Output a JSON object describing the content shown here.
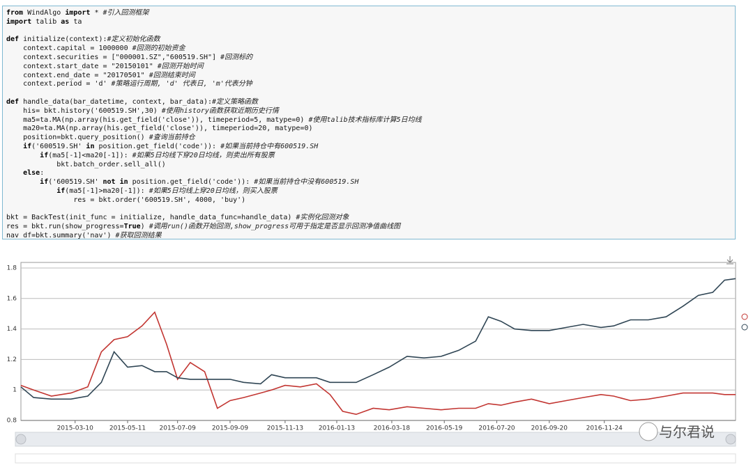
{
  "code": [
    [
      "from WindAlgo import * #引入回测框架",
      "import talib as ta"
    ],
    [
      "def initialize(context):#定义初始化函数",
      "    context.capital = 1000000 #回测的初始资金",
      "    context.securities = [\"000001.SZ\",\"600519.SH\"] #回测标的",
      "    context.start_date = \"20150101\" #回测开始时间",
      "    context.end_date = \"20170501\" #回测结束时间",
      "    context.period = 'd' #策略运行周期, 'd' 代表日, 'm'代表分钟"
    ],
    [
      "def handle_data(bar_datetime, context, bar_data):#定义策略函数",
      "    his= bkt.history('600519.SH',30) #使用history函数获取近期历史行情",
      "    ma5=ta.MA(np.array(his.get_field('close')), timeperiod=5, matype=0) #使用talib技术指标库计算5日均线",
      "    ma20=ta.MA(np.array(his.get_field('close')), timeperiod=20, matype=0)",
      "    position=bkt.query_position() #查询当前持仓",
      "    if('600519.SH' in position.get_field('code')): #如果当前持仓中有600519.SH",
      "        if(ma5[-1]<ma20[-1]): #如果5日均线下穿20日均线，则卖出所有股票",
      "            bkt.batch_order.sell_all()",
      "    else:",
      "        if('600519.SH' not in position.get_field('code')): #如果当前持仓中没有600519.SH",
      "            if(ma5[-1]>ma20[-1]): #如果5日均线上穿20日均线，则买入股票",
      "                res = bkt.order('600519.SH', 4000, 'buy')"
    ],
    [
      "bkt = BackTest(init_func = initialize, handle_data_func=handle_data) #实例化回测对象",
      "res = bkt.run(show_progress=True) #调用run()函数开始回测,show_progress可用于指定是否显示回测净值曲线图",
      "nav_df=bkt.summary('nav') #获取回测结果"
    ]
  ],
  "watermark": "与尔君说",
  "chart_data": {
    "type": "line",
    "x": [
      "2015-01-05",
      "2015-01-20",
      "2015-02-10",
      "2015-03-05",
      "2015-03-25",
      "2015-04-10",
      "2015-04-25",
      "2015-05-11",
      "2015-05-28",
      "2015-06-12",
      "2015-06-26",
      "2015-07-09",
      "2015-07-24",
      "2015-08-10",
      "2015-08-25",
      "2015-09-09",
      "2015-09-25",
      "2015-10-15",
      "2015-10-28",
      "2015-11-13",
      "2015-12-01",
      "2015-12-20",
      "2016-01-05",
      "2016-01-20",
      "2016-02-05",
      "2016-02-25",
      "2016-03-15",
      "2016-04-05",
      "2016-04-25",
      "2016-05-15",
      "2016-06-05",
      "2016-06-25",
      "2016-07-10",
      "2016-07-25",
      "2016-08-10",
      "2016-08-30",
      "2016-09-20",
      "2016-10-10",
      "2016-10-30",
      "2016-11-20",
      "2016-12-05",
      "2016-12-25",
      "2017-01-15",
      "2017-02-05",
      "2017-02-25",
      "2017-03-15",
      "2017-04-01",
      "2017-04-15",
      "2017-04-28"
    ],
    "series": [
      {
        "color": "#c23531",
        "values": [
          1.03,
          1.0,
          0.96,
          0.98,
          1.02,
          1.25,
          1.33,
          1.35,
          1.42,
          1.51,
          1.3,
          1.07,
          1.18,
          1.12,
          0.88,
          0.93,
          0.95,
          0.98,
          1.0,
          1.03,
          1.02,
          1.04,
          0.97,
          0.86,
          0.84,
          0.88,
          0.87,
          0.89,
          0.88,
          0.87,
          0.88,
          0.88,
          0.91,
          0.9,
          0.92,
          0.94,
          0.91,
          0.93,
          0.95,
          0.97,
          0.96,
          0.93,
          0.94,
          0.96,
          0.98,
          0.98,
          0.98,
          0.97,
          0.97
        ]
      },
      {
        "color": "#2f4554",
        "values": [
          1.02,
          0.95,
          0.94,
          0.94,
          0.96,
          1.05,
          1.25,
          1.15,
          1.16,
          1.12,
          1.12,
          1.08,
          1.07,
          1.07,
          1.07,
          1.07,
          1.05,
          1.04,
          1.1,
          1.08,
          1.08,
          1.08,
          1.05,
          1.05,
          1.05,
          1.1,
          1.15,
          1.22,
          1.21,
          1.22,
          1.26,
          1.32,
          1.48,
          1.45,
          1.4,
          1.39,
          1.39,
          1.41,
          1.43,
          1.41,
          1.42,
          1.46,
          1.46,
          1.48,
          1.55,
          1.62,
          1.64,
          1.72,
          1.73
        ]
      }
    ],
    "xlim": [
      "2015-01-05",
      "2017-04-28"
    ],
    "xticks": [
      "2015-03-10",
      "2015-05-11",
      "2015-07-09",
      "2015-09-09",
      "2015-11-13",
      "2016-01-13",
      "2016-03-18",
      "2016-05-19",
      "2016-07-20",
      "2016-09-20",
      "2016-11-24"
    ],
    "ylim": [
      0.8,
      1.8
    ],
    "yticks": [
      0.8,
      1,
      1.2,
      1.4,
      1.6,
      1.8
    ],
    "grid": true
  }
}
